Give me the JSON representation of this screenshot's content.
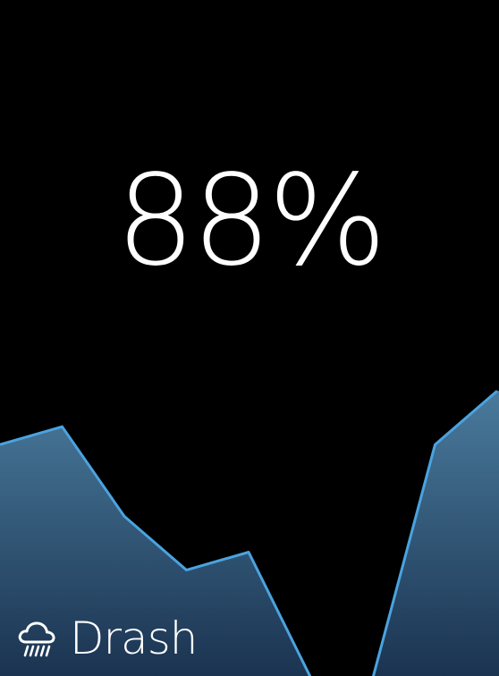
{
  "reading": {
    "value": "88%"
  },
  "brand": {
    "name": "Drash",
    "icon": "rain-cloud-icon"
  },
  "chart_data": {
    "type": "area",
    "x": [
      0,
      1,
      2,
      3,
      4,
      5,
      6,
      7,
      8
    ],
    "values": [
      0.96,
      0.97,
      0.92,
      0.89,
      0.9,
      0.83,
      0.83,
      0.96,
      0.99
    ],
    "ylim": [
      0.8,
      1.0
    ],
    "line_color": "#4aa3e0",
    "fill_color_top": "#4a7a9c",
    "fill_color_bottom": "#1a3350",
    "grid": false
  },
  "colors": {
    "background": "#000000",
    "text": "#ffffff"
  }
}
